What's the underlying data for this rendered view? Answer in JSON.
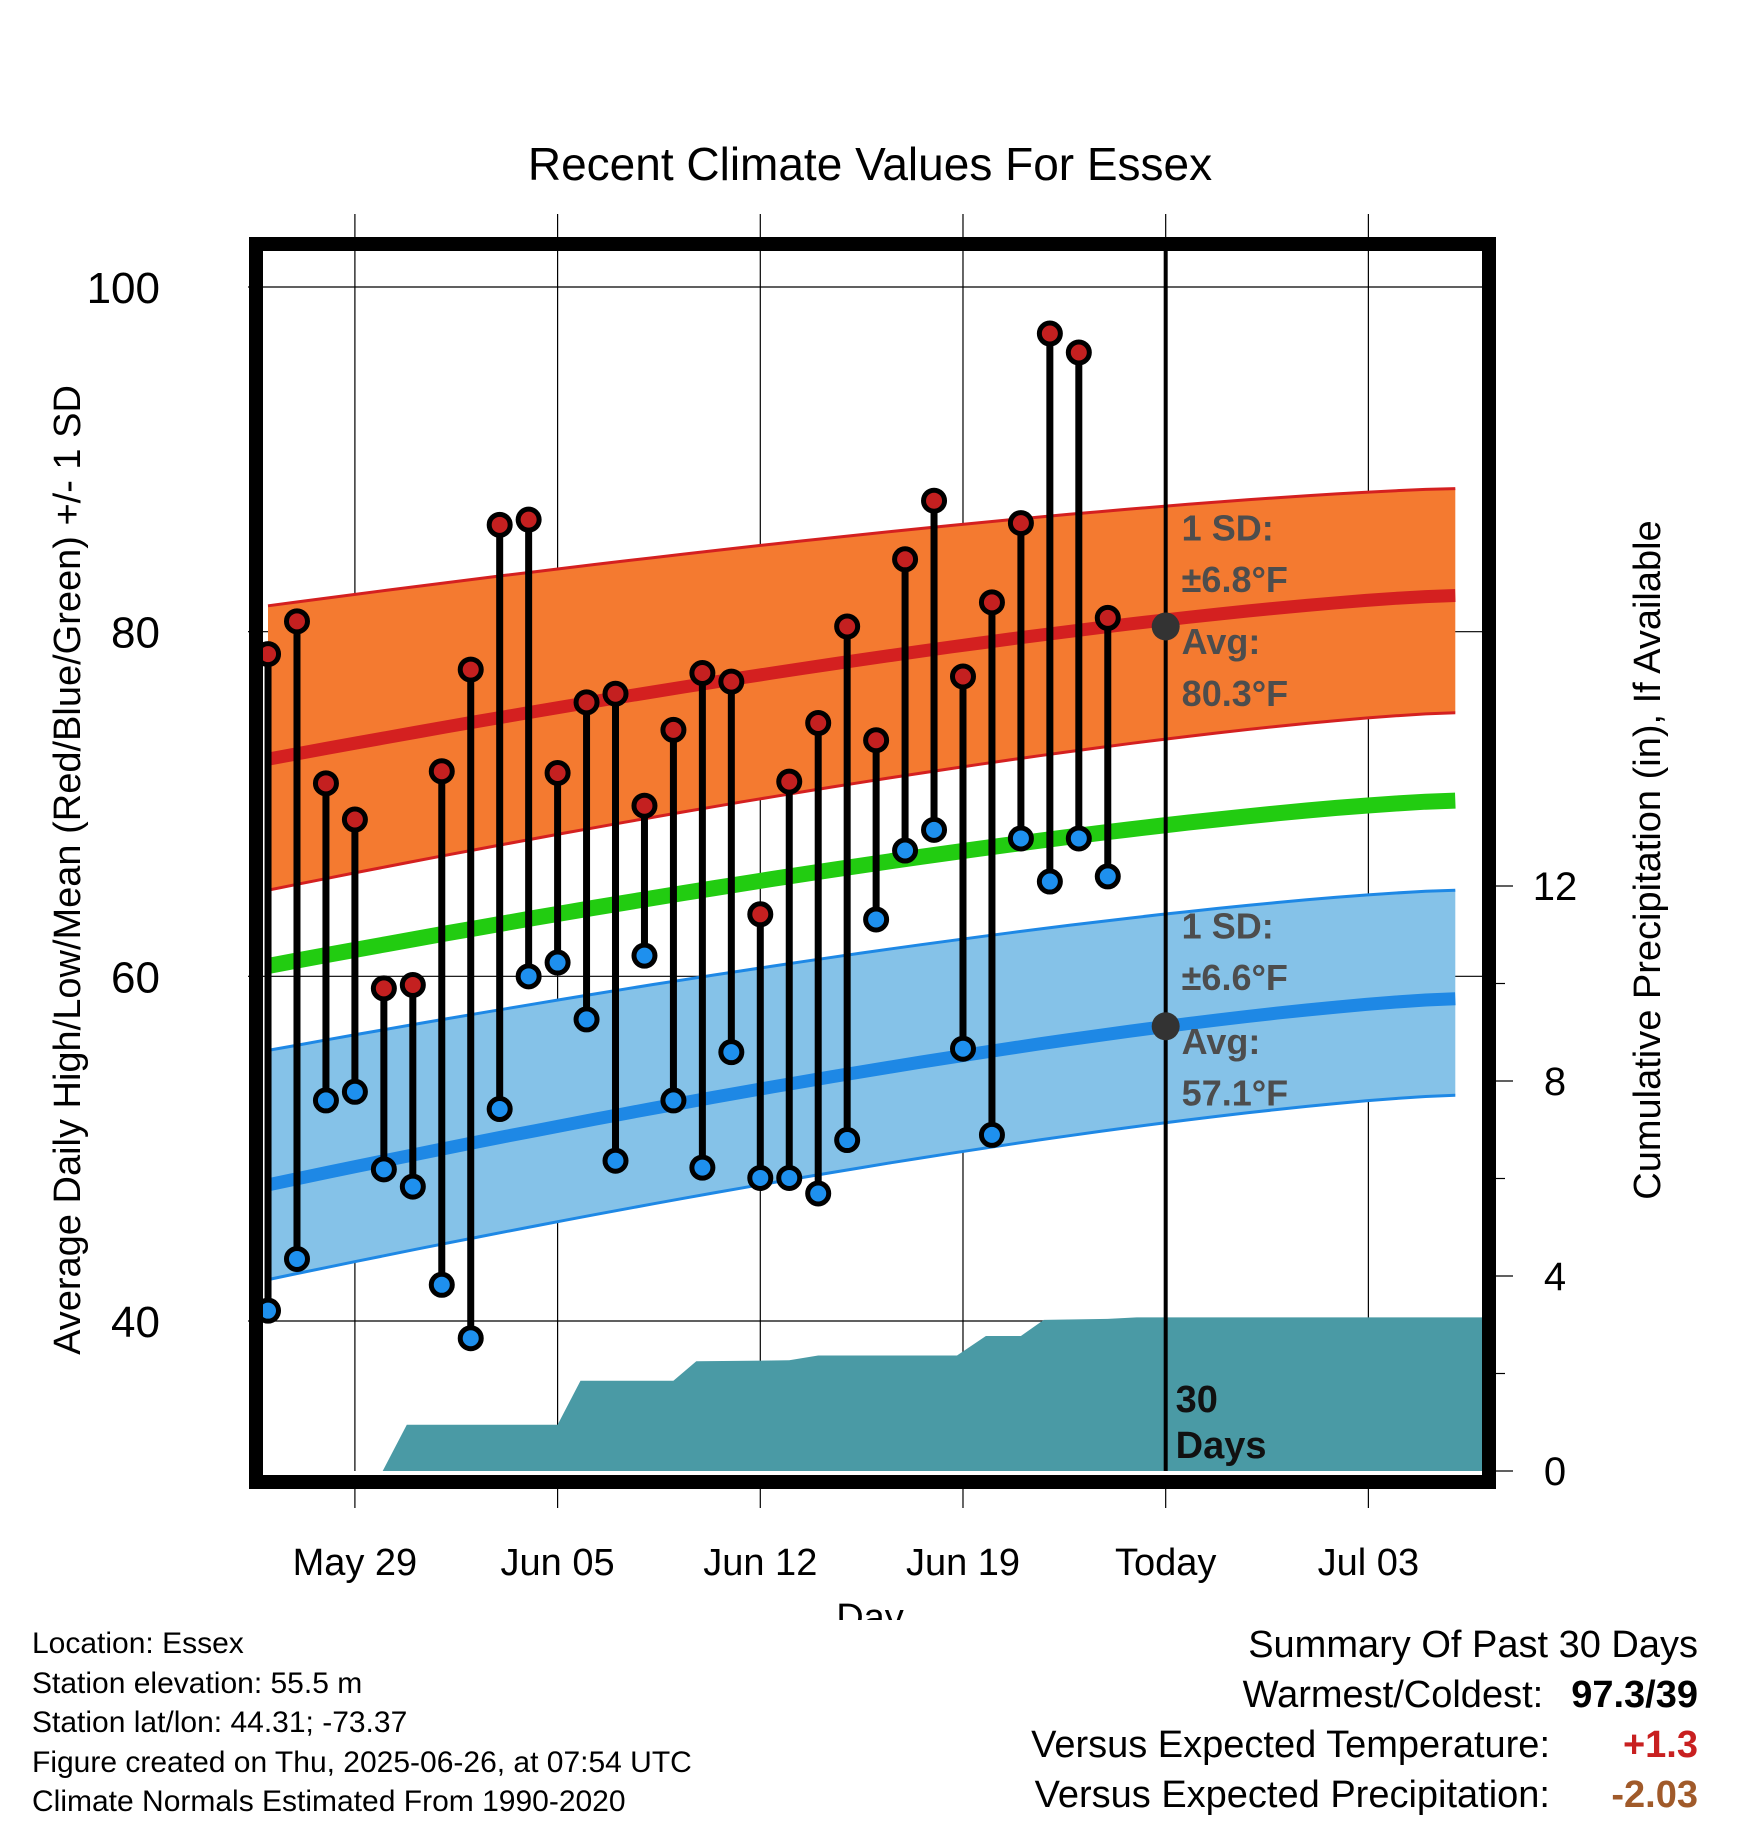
{
  "chart_data": {
    "type": "line",
    "title": "Recent Climate Values For Essex",
    "xlabel": "Day",
    "ylabel": "Average Daily High/Low/Mean (Red/Blue/Green) +/- 1 SD",
    "y2label": "Cumulative Precipitation (in), If Available",
    "ylim": [
      31.5,
      104.5
    ],
    "y2lim": [
      0,
      19.4
    ],
    "yticks": [
      40,
      60,
      80,
      100
    ],
    "y2ticks": [
      0,
      4,
      8,
      12
    ],
    "x_tick_labels": [
      "May 29",
      "Jun 05",
      "Jun 12",
      "Jun 19",
      "Today",
      "Jul 03"
    ],
    "x_tick_dates": [
      "2025-05-29",
      "2025-06-05",
      "2025-06-12",
      "2025-06-19",
      "2025-06-26",
      "2025-07-03"
    ],
    "x_range": [
      "2025-05-25 19:00",
      "2025-07-06 23:00"
    ],
    "grid": true,
    "today": "2025-06-26",
    "colors": {
      "high_band": "#f47a30",
      "high_line": "#d42020",
      "mean_line": "#22cc11",
      "low_band": "#85c2e8",
      "low_line": "#1e88e5",
      "precip": "#4a9aa5",
      "high_dot": "#c42020",
      "low_dot": "#1e90ee",
      "annot": "#4d4d4d",
      "summary_temp": "#c82020",
      "summary_precip": "#a05a2a"
    },
    "normals": {
      "dates": [
        "2025-05-26",
        "2025-07-06"
      ],
      "high": [
        72.6,
        82.1
      ],
      "high_sd_upper": [
        81.5,
        88.3
      ],
      "high_sd_lower": [
        65.0,
        75.3
      ],
      "mean": [
        60.6,
        70.2
      ],
      "low": [
        47.9,
        58.7
      ],
      "low_sd_upper": [
        55.7,
        65.0
      ],
      "low_sd_lower": [
        42.4,
        53.1
      ]
    },
    "series": [
      {
        "name": "High",
        "x": [
          "2025-05-26",
          "2025-05-27",
          "2025-05-28",
          "2025-05-29",
          "2025-05-30",
          "2025-05-31",
          "2025-06-01",
          "2025-06-02",
          "2025-06-03",
          "2025-06-04",
          "2025-06-05",
          "2025-06-06",
          "2025-06-07",
          "2025-06-08",
          "2025-06-09",
          "2025-06-10",
          "2025-06-11",
          "2025-06-12",
          "2025-06-13",
          "2025-06-14",
          "2025-06-15",
          "2025-06-16",
          "2025-06-17",
          "2025-06-18",
          "2025-06-19",
          "2025-06-20",
          "2025-06-21",
          "2025-06-22",
          "2025-06-23",
          "2025-06-24",
          "2025-06-25"
        ],
        "values": [
          78.7,
          80.6,
          71.2,
          69.1,
          59.3,
          59.5,
          71.9,
          77.8,
          86.2,
          86.5,
          71.8,
          75.9,
          76.4,
          69.9,
          74.3,
          77.6,
          77.1,
          63.6,
          71.3,
          74.7,
          80.3,
          73.7,
          84.2,
          87.6,
          77.4,
          81.7,
          86.3,
          97.3,
          96.2,
          80.8,
          0
        ]
      },
      {
        "name": "Low",
        "x": [
          "2025-05-26",
          "2025-05-27",
          "2025-05-28",
          "2025-05-29",
          "2025-05-30",
          "2025-05-31",
          "2025-06-01",
          "2025-06-02",
          "2025-06-03",
          "2025-06-04",
          "2025-06-05",
          "2025-06-06",
          "2025-06-07",
          "2025-06-08",
          "2025-06-09",
          "2025-06-10",
          "2025-06-11",
          "2025-06-12",
          "2025-06-13",
          "2025-06-14",
          "2025-06-15",
          "2025-06-16",
          "2025-06-17",
          "2025-06-18",
          "2025-06-19",
          "2025-06-20",
          "2025-06-21",
          "2025-06-22",
          "2025-06-23",
          "2025-06-24",
          "2025-06-25"
        ],
        "values": [
          40.6,
          43.6,
          52.8,
          53.3,
          48.8,
          47.8,
          42.1,
          39.0,
          52.3,
          60.0,
          60.8,
          57.5,
          49.3,
          61.2,
          52.8,
          48.9,
          55.6,
          48.3,
          48.3,
          47.4,
          50.5,
          63.3,
          67.3,
          68.5,
          55.8,
          50.8,
          68.0,
          65.5,
          68.0,
          65.8,
          0
        ]
      }
    ],
    "precip": {
      "x": [
        "2025-05-26",
        "2025-05-29 23:00",
        "2025-05-30 19:00",
        "2025-06-05 00:00",
        "2025-06-05 19:00",
        "2025-06-09 00:00",
        "2025-06-09 19:00",
        "2025-06-13 00:00",
        "2025-06-14 00:00",
        "2025-06-18 19:00",
        "2025-06-19 19:00",
        "2025-06-21 00:00",
        "2025-06-21 19:00",
        "2025-06-24 00:00",
        "2025-06-25 00:00",
        "2025-07-06 23:00"
      ],
      "values": [
        0,
        0,
        0.95,
        0.95,
        1.85,
        1.85,
        2.25,
        2.27,
        2.37,
        2.37,
        2.77,
        2.77,
        3.1,
        3.12,
        3.15,
        3.15
      ]
    },
    "annotations": {
      "high_sd_label": "1 SD:",
      "high_sd_value": "±6.8°F",
      "high_avg_label": "Avg:",
      "high_avg_value": "80.3°F",
      "high_avg": 80.3,
      "low_sd_label": "1 SD:",
      "low_sd_value": "±6.6°F",
      "low_avg_label": "Avg:",
      "low_avg_value": "57.1°F",
      "low_avg": 57.1,
      "days_label_1": "30",
      "days_label_2": "Days"
    }
  },
  "info": {
    "location": "Location: Essex",
    "elevation": "Station elevation: 55.5 m",
    "latlon": "Station lat/lon: 44.31; -73.37",
    "created": "Figure created on Thu, 2025-06-26, at 07:54 UTC",
    "normals": "Climate Normals Estimated From 1990-2020"
  },
  "summary": {
    "title": "Summary Of Past 30 Days",
    "warm_cold_label": "Warmest/Coldest:",
    "warm_cold_value": "97.3/39",
    "temp_label": "Versus Expected Temperature:",
    "temp_value": "+1.3",
    "precip_label": "Versus Expected Precipitation:",
    "precip_value": "-2.03"
  }
}
